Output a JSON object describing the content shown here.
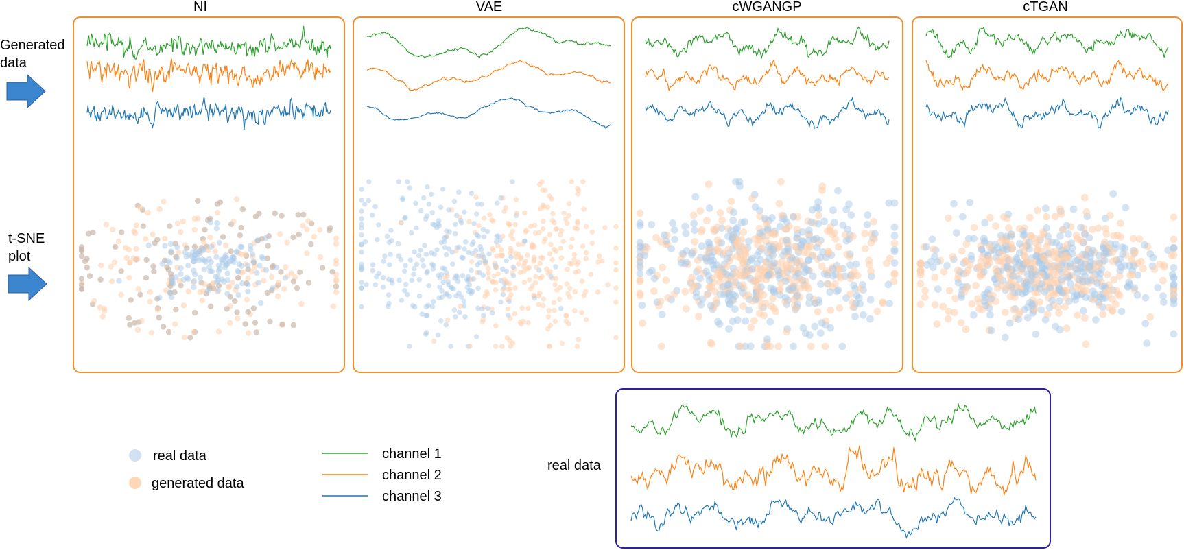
{
  "row_labels": {
    "generated": [
      "Generated",
      "data"
    ],
    "tsne": [
      "t-SNE",
      "plot"
    ]
  },
  "colors": {
    "real": "#a9c9e8",
    "generated": "#fdd0ad",
    "channel1": "#2ca02c",
    "channel2": "#ff7f0e",
    "channel3": "#1f77b4",
    "panel_border": "#f28e2b",
    "real_border": "#2c1fa8",
    "arrow": "#3c85cf"
  },
  "panels": [
    {
      "title": "NI",
      "style": "noise",
      "tsne": "ring"
    },
    {
      "title": "VAE",
      "style": "smooth",
      "tsne": "split"
    },
    {
      "title": "cWGANGP",
      "style": "mixed",
      "tsne": "mixed"
    },
    {
      "title": "cTGAN",
      "style": "mixed",
      "tsne": "mixed_dense"
    }
  ],
  "real_box": {
    "label": "real data"
  },
  "legend": {
    "markers": [
      {
        "label": "real data",
        "series": "real"
      },
      {
        "label": "generated data",
        "series": "generated"
      }
    ],
    "lines": [
      {
        "label": "channel 1",
        "series": "channel1"
      },
      {
        "label": "channel 2",
        "series": "channel2"
      },
      {
        "label": "channel 3",
        "series": "channel3"
      }
    ]
  }
}
